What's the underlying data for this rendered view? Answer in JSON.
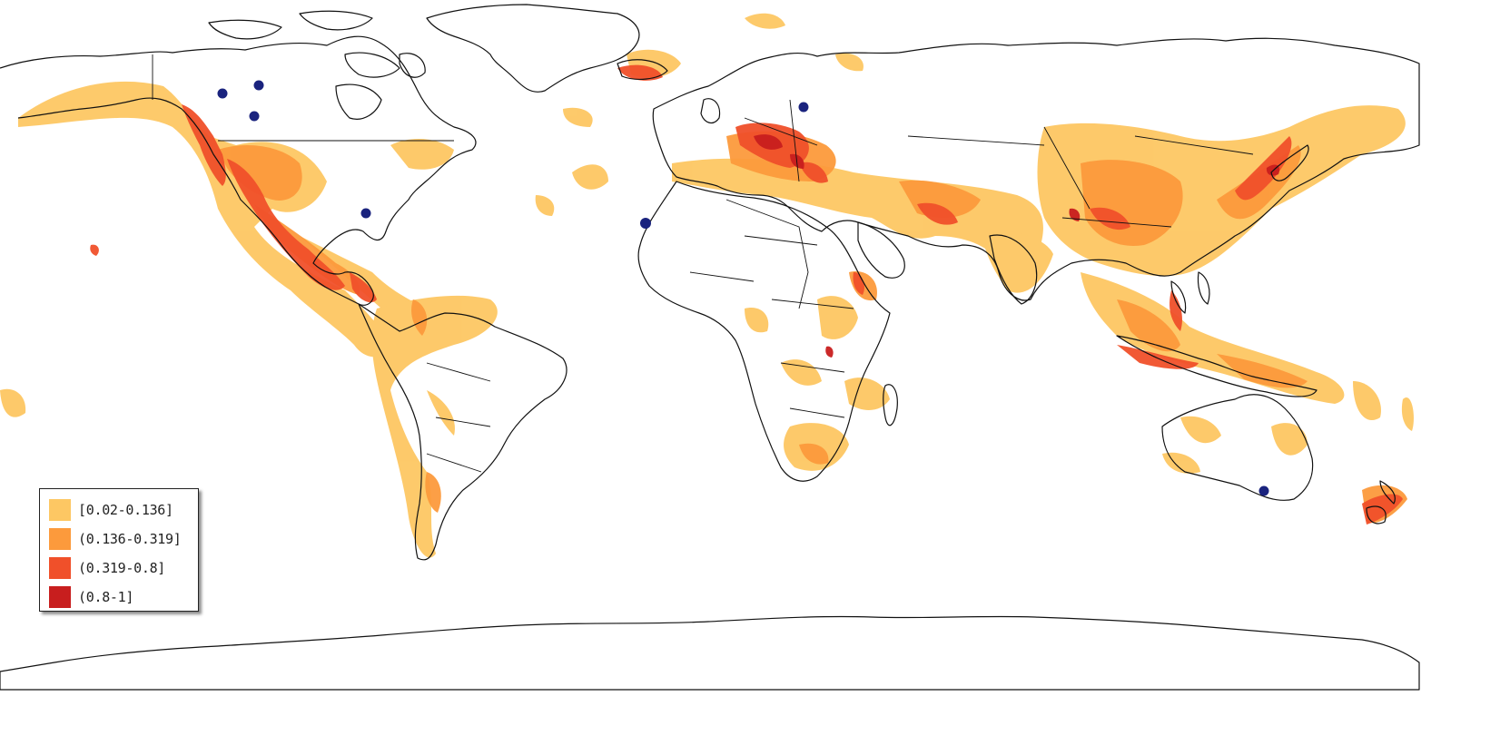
{
  "map": {
    "colors": {
      "background": "#ffffff",
      "coastline": "#111111",
      "point": "#1a237e",
      "class_1": "#fdc763",
      "class_2": "#fc9a3c",
      "class_3": "#f0502a",
      "class_4": "#c81e1e"
    }
  },
  "legend": {
    "items": [
      {
        "label": "[0.02-0.136]",
        "color": "#fdc763"
      },
      {
        "label": "(0.136-0.319]",
        "color": "#fc9a3c"
      },
      {
        "label": "(0.319-0.8]",
        "color": "#f0502a"
      },
      {
        "label": "(0.8-1]",
        "color": "#c81e1e"
      }
    ]
  }
}
